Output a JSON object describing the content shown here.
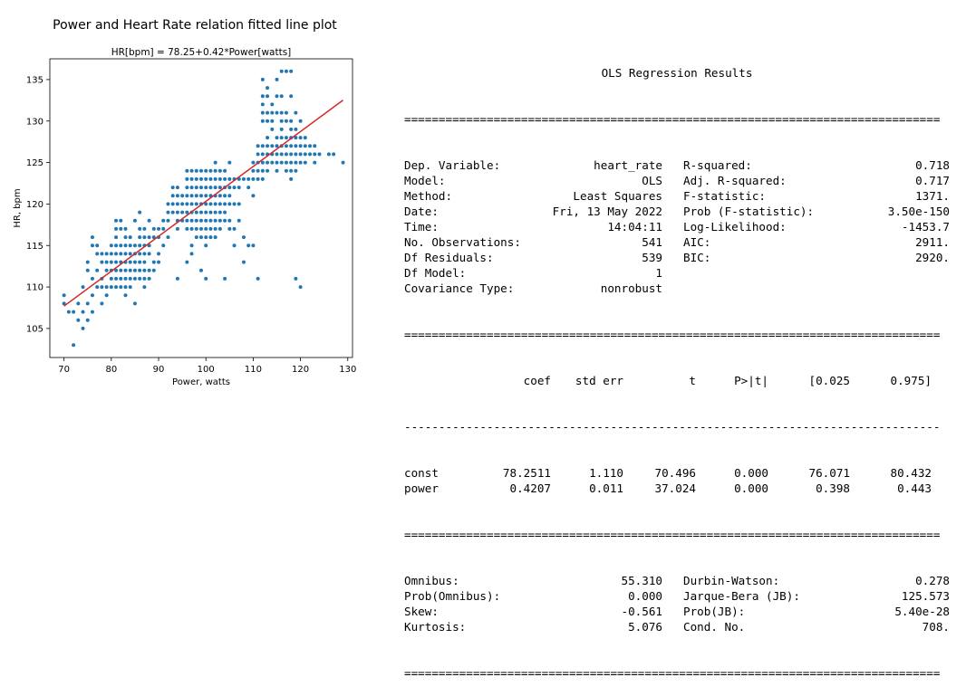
{
  "chart_data": {
    "type": "scatter",
    "title": "Power and Heart Rate relation fitted line plot",
    "subtitle": "HR[bpm] = 78.25+0.42*Power[watts]",
    "xlabel": "Power, watts",
    "ylabel": "HR, bpm",
    "xlim": [
      67,
      131
    ],
    "ylim": [
      101.5,
      137.5
    ],
    "xticks": [
      70,
      80,
      90,
      100,
      110,
      120,
      130
    ],
    "yticks": [
      105,
      110,
      115,
      120,
      125,
      130,
      135
    ],
    "grid": false,
    "point_color": "#1f77b4",
    "line_color": "#d62728",
    "fit_line": {
      "intercept": 78.2511,
      "slope": 0.4207,
      "x": [
        70,
        129
      ]
    },
    "points": [
      [
        70,
        109
      ],
      [
        70,
        108
      ],
      [
        71,
        107
      ],
      [
        72,
        103
      ],
      [
        72,
        107
      ],
      [
        73,
        106
      ],
      [
        73,
        108
      ],
      [
        74,
        105
      ],
      [
        74,
        107
      ],
      [
        74,
        110
      ],
      [
        75,
        106
      ],
      [
        75,
        108
      ],
      [
        75,
        112
      ],
      [
        75,
        113
      ],
      [
        76,
        107
      ],
      [
        76,
        109
      ],
      [
        76,
        111
      ],
      [
        76,
        115
      ],
      [
        76,
        116
      ],
      [
        77,
        110
      ],
      [
        77,
        112
      ],
      [
        77,
        114
      ],
      [
        77,
        115
      ],
      [
        78,
        108
      ],
      [
        78,
        110
      ],
      [
        78,
        111
      ],
      [
        78,
        113
      ],
      [
        78,
        114
      ],
      [
        79,
        109
      ],
      [
        79,
        110
      ],
      [
        79,
        112
      ],
      [
        79,
        113
      ],
      [
        79,
        114
      ],
      [
        80,
        110
      ],
      [
        80,
        111
      ],
      [
        80,
        112
      ],
      [
        80,
        113
      ],
      [
        80,
        114
      ],
      [
        80,
        115
      ],
      [
        81,
        110
      ],
      [
        81,
        111
      ],
      [
        81,
        112
      ],
      [
        81,
        113
      ],
      [
        81,
        114
      ],
      [
        81,
        115
      ],
      [
        81,
        116
      ],
      [
        81,
        117
      ],
      [
        81,
        118
      ],
      [
        82,
        110
      ],
      [
        82,
        111
      ],
      [
        82,
        112
      ],
      [
        82,
        113
      ],
      [
        82,
        114
      ],
      [
        82,
        115
      ],
      [
        82,
        117
      ],
      [
        82,
        118
      ],
      [
        83,
        109
      ],
      [
        83,
        110
      ],
      [
        83,
        111
      ],
      [
        83,
        112
      ],
      [
        83,
        113
      ],
      [
        83,
        114
      ],
      [
        83,
        115
      ],
      [
        83,
        116
      ],
      [
        83,
        117
      ],
      [
        84,
        110
      ],
      [
        84,
        111
      ],
      [
        84,
        112
      ],
      [
        84,
        113
      ],
      [
        84,
        114
      ],
      [
        84,
        115
      ],
      [
        84,
        116
      ],
      [
        85,
        108
      ],
      [
        85,
        111
      ],
      [
        85,
        112
      ],
      [
        85,
        113
      ],
      [
        85,
        114
      ],
      [
        85,
        115
      ],
      [
        85,
        118
      ],
      [
        86,
        111
      ],
      [
        86,
        112
      ],
      [
        86,
        113
      ],
      [
        86,
        114
      ],
      [
        86,
        115
      ],
      [
        86,
        116
      ],
      [
        86,
        117
      ],
      [
        86,
        119
      ],
      [
        87,
        110
      ],
      [
        87,
        111
      ],
      [
        87,
        112
      ],
      [
        87,
        113
      ],
      [
        87,
        114
      ],
      [
        87,
        115
      ],
      [
        87,
        116
      ],
      [
        87,
        117
      ],
      [
        88,
        111
      ],
      [
        88,
        112
      ],
      [
        88,
        114
      ],
      [
        88,
        115
      ],
      [
        88,
        116
      ],
      [
        88,
        118
      ],
      [
        89,
        112
      ],
      [
        89,
        113
      ],
      [
        89,
        116
      ],
      [
        89,
        117
      ],
      [
        90,
        113
      ],
      [
        90,
        114
      ],
      [
        90,
        116
      ],
      [
        90,
        117
      ],
      [
        91,
        115
      ],
      [
        91,
        117
      ],
      [
        91,
        118
      ],
      [
        92,
        116
      ],
      [
        92,
        118
      ],
      [
        92,
        119
      ],
      [
        92,
        120
      ],
      [
        93,
        119
      ],
      [
        93,
        120
      ],
      [
        93,
        121
      ],
      [
        93,
        122
      ],
      [
        94,
        111
      ],
      [
        94,
        117
      ],
      [
        94,
        118
      ],
      [
        94,
        119
      ],
      [
        94,
        120
      ],
      [
        94,
        121
      ],
      [
        94,
        122
      ],
      [
        95,
        118
      ],
      [
        95,
        119
      ],
      [
        95,
        120
      ],
      [
        95,
        121
      ],
      [
        96,
        113
      ],
      [
        96,
        117
      ],
      [
        96,
        118
      ],
      [
        96,
        119
      ],
      [
        96,
        120
      ],
      [
        96,
        121
      ],
      [
        96,
        122
      ],
      [
        96,
        123
      ],
      [
        96,
        124
      ],
      [
        97,
        114
      ],
      [
        97,
        115
      ],
      [
        97,
        117
      ],
      [
        97,
        118
      ],
      [
        97,
        119
      ],
      [
        97,
        120
      ],
      [
        97,
        121
      ],
      [
        97,
        122
      ],
      [
        97,
        123
      ],
      [
        97,
        124
      ],
      [
        98,
        116
      ],
      [
        98,
        117
      ],
      [
        98,
        118
      ],
      [
        98,
        119
      ],
      [
        98,
        120
      ],
      [
        98,
        121
      ],
      [
        98,
        122
      ],
      [
        98,
        123
      ],
      [
        98,
        124
      ],
      [
        99,
        112
      ],
      [
        99,
        116
      ],
      [
        99,
        117
      ],
      [
        99,
        118
      ],
      [
        99,
        119
      ],
      [
        99,
        120
      ],
      [
        99,
        121
      ],
      [
        99,
        122
      ],
      [
        99,
        123
      ],
      [
        99,
        124
      ],
      [
        100,
        111
      ],
      [
        100,
        115
      ],
      [
        100,
        116
      ],
      [
        100,
        117
      ],
      [
        100,
        118
      ],
      [
        100,
        119
      ],
      [
        100,
        120
      ],
      [
        100,
        121
      ],
      [
        100,
        122
      ],
      [
        100,
        123
      ],
      [
        100,
        124
      ],
      [
        101,
        116
      ],
      [
        101,
        117
      ],
      [
        101,
        118
      ],
      [
        101,
        119
      ],
      [
        101,
        120
      ],
      [
        101,
        121
      ],
      [
        101,
        122
      ],
      [
        101,
        123
      ],
      [
        101,
        124
      ],
      [
        102,
        116
      ],
      [
        102,
        117
      ],
      [
        102,
        118
      ],
      [
        102,
        119
      ],
      [
        102,
        120
      ],
      [
        102,
        121
      ],
      [
        102,
        122
      ],
      [
        102,
        123
      ],
      [
        102,
        124
      ],
      [
        102,
        125
      ],
      [
        103,
        117
      ],
      [
        103,
        118
      ],
      [
        103,
        119
      ],
      [
        103,
        120
      ],
      [
        103,
        121
      ],
      [
        103,
        122
      ],
      [
        103,
        123
      ],
      [
        103,
        124
      ],
      [
        104,
        111
      ],
      [
        104,
        118
      ],
      [
        104,
        119
      ],
      [
        104,
        120
      ],
      [
        104,
        121
      ],
      [
        104,
        122
      ],
      [
        104,
        123
      ],
      [
        104,
        124
      ],
      [
        105,
        117
      ],
      [
        105,
        118
      ],
      [
        105,
        120
      ],
      [
        105,
        121
      ],
      [
        105,
        122
      ],
      [
        105,
        123
      ],
      [
        105,
        125
      ],
      [
        106,
        115
      ],
      [
        106,
        117
      ],
      [
        106,
        120
      ],
      [
        106,
        122
      ],
      [
        106,
        123
      ],
      [
        107,
        118
      ],
      [
        107,
        120
      ],
      [
        107,
        122
      ],
      [
        107,
        123
      ],
      [
        108,
        113
      ],
      [
        108,
        116
      ],
      [
        108,
        123
      ],
      [
        109,
        115
      ],
      [
        109,
        122
      ],
      [
        109,
        123
      ],
      [
        110,
        115
      ],
      [
        110,
        121
      ],
      [
        110,
        123
      ],
      [
        110,
        124
      ],
      [
        110,
        125
      ],
      [
        111,
        111
      ],
      [
        111,
        123
      ],
      [
        111,
        124
      ],
      [
        111,
        125
      ],
      [
        111,
        126
      ],
      [
        111,
        127
      ],
      [
        112,
        123
      ],
      [
        112,
        124
      ],
      [
        112,
        125
      ],
      [
        112,
        126
      ],
      [
        112,
        127
      ],
      [
        112,
        130
      ],
      [
        112,
        131
      ],
      [
        112,
        132
      ],
      [
        112,
        133
      ],
      [
        112,
        135
      ],
      [
        113,
        124
      ],
      [
        113,
        125
      ],
      [
        113,
        126
      ],
      [
        113,
        127
      ],
      [
        113,
        128
      ],
      [
        113,
        130
      ],
      [
        113,
        131
      ],
      [
        113,
        133
      ],
      [
        113,
        134
      ],
      [
        114,
        125
      ],
      [
        114,
        126
      ],
      [
        114,
        127
      ],
      [
        114,
        129
      ],
      [
        114,
        130
      ],
      [
        114,
        131
      ],
      [
        114,
        132
      ],
      [
        115,
        124
      ],
      [
        115,
        125
      ],
      [
        115,
        126
      ],
      [
        115,
        127
      ],
      [
        115,
        128
      ],
      [
        115,
        131
      ],
      [
        115,
        133
      ],
      [
        115,
        135
      ],
      [
        116,
        125
      ],
      [
        116,
        126
      ],
      [
        116,
        127
      ],
      [
        116,
        128
      ],
      [
        116,
        129
      ],
      [
        116,
        130
      ],
      [
        116,
        131
      ],
      [
        116,
        133
      ],
      [
        116,
        136
      ],
      [
        117,
        124
      ],
      [
        117,
        125
      ],
      [
        117,
        126
      ],
      [
        117,
        127
      ],
      [
        117,
        128
      ],
      [
        117,
        130
      ],
      [
        117,
        131
      ],
      [
        117,
        136
      ],
      [
        118,
        123
      ],
      [
        118,
        124
      ],
      [
        118,
        125
      ],
      [
        118,
        126
      ],
      [
        118,
        127
      ],
      [
        118,
        128
      ],
      [
        118,
        129
      ],
      [
        118,
        130
      ],
      [
        118,
        133
      ],
      [
        118,
        136
      ],
      [
        119,
        111
      ],
      [
        119,
        124
      ],
      [
        119,
        125
      ],
      [
        119,
        126
      ],
      [
        119,
        127
      ],
      [
        119,
        128
      ],
      [
        119,
        129
      ],
      [
        119,
        131
      ],
      [
        120,
        110
      ],
      [
        120,
        125
      ],
      [
        120,
        126
      ],
      [
        120,
        127
      ],
      [
        120,
        128
      ],
      [
        120,
        130
      ],
      [
        121,
        125
      ],
      [
        121,
        126
      ],
      [
        121,
        127
      ],
      [
        121,
        128
      ],
      [
        122,
        126
      ],
      [
        122,
        127
      ],
      [
        123,
        125
      ],
      [
        123,
        126
      ],
      [
        123,
        127
      ],
      [
        124,
        126
      ],
      [
        126,
        126
      ],
      [
        127,
        126
      ],
      [
        129,
        125
      ]
    ]
  },
  "ols": {
    "title": "OLS Regression Results",
    "sep_double": "==============================================================================",
    "sep_single": "------------------------------------------------------------------------------",
    "top": [
      {
        "l1": "Dep. Variable:",
        "v1": "heart_rate",
        "l2": "R-squared:",
        "v2": "0.718"
      },
      {
        "l1": "Model:",
        "v1": "OLS",
        "l2": "Adj. R-squared:",
        "v2": "0.717"
      },
      {
        "l1": "Method:",
        "v1": "Least Squares",
        "l2": "F-statistic:",
        "v2": "1371."
      },
      {
        "l1": "Date:",
        "v1": "Fri, 13 May 2022",
        "l2": "Prob (F-statistic):",
        "v2": "3.50e-150"
      },
      {
        "l1": "Time:",
        "v1": "14:04:11",
        "l2": "Log-Likelihood:",
        "v2": "-1453.7"
      },
      {
        "l1": "No. Observations:",
        "v1": "541",
        "l2": "AIC:",
        "v2": "2911."
      },
      {
        "l1": "Df Residuals:",
        "v1": "539",
        "l2": "BIC:",
        "v2": "2920."
      },
      {
        "l1": "Df Model:",
        "v1": "1",
        "l2": "",
        "v2": ""
      },
      {
        "l1": "Covariance Type:",
        "v1": "nonrobust",
        "l2": "",
        "v2": ""
      }
    ],
    "coef_header": [
      "",
      "coef",
      "std err",
      "t",
      "P>|t|",
      "[0.025",
      "0.975]"
    ],
    "coef_rows": [
      [
        "const",
        "78.2511",
        "1.110",
        "70.496",
        "0.000",
        "76.071",
        "80.432"
      ],
      [
        "power",
        "0.4207",
        "0.011",
        "37.024",
        "0.000",
        "0.398",
        "0.443"
      ]
    ],
    "bottom": [
      {
        "l1": "Omnibus:",
        "v1": "55.310",
        "l2": "Durbin-Watson:",
        "v2": "0.278"
      },
      {
        "l1": "Prob(Omnibus):",
        "v1": "0.000",
        "l2": "Jarque-Bera (JB):",
        "v2": "125.573"
      },
      {
        "l1": "Skew:",
        "v1": "-0.561",
        "l2": "Prob(JB):",
        "v2": "5.40e-28"
      },
      {
        "l1": "Kurtosis:",
        "v1": "5.076",
        "l2": "Cond. No.",
        "v2": "708."
      }
    ]
  }
}
